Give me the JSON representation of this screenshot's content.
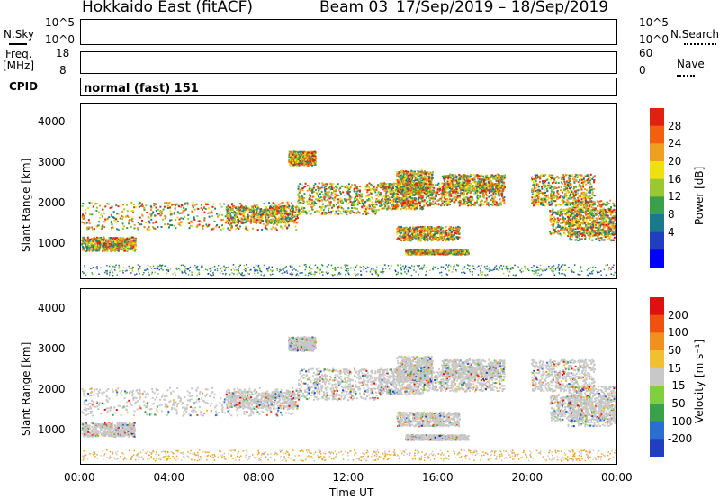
{
  "header": {
    "title": "Hokkaido East (fitACF)",
    "beam": "Beam 03",
    "dates": "17/Sep/2019 – 18/Sep/2019"
  },
  "summary": {
    "nsky_label": "N.Sky",
    "nsky_ticks": [
      "10^5",
      "10^0"
    ],
    "nsearch_label": "N.Search",
    "nsearch_ticks": [
      "10^5",
      "10^0"
    ],
    "freq_label": "Freq.",
    "freq_unit": "[MHz]",
    "freq_ticks": [
      "18",
      "8"
    ],
    "nave_label": "Nave",
    "nave_ticks": [
      "60",
      "0"
    ],
    "cpid_label": "CPID",
    "cpid_value": "normal (fast) 151"
  },
  "chart_data": [
    {
      "type": "heatmap",
      "name": "power",
      "ylabel": "Slant Range [km]",
      "y_ticks": [
        "4000",
        "3000",
        "2000",
        "1000"
      ],
      "ylim": [
        180,
        4500
      ],
      "colorbar_label": "Power [dB]",
      "colorbar_ticks": [
        "28",
        "24",
        "20",
        "16",
        "12",
        "8",
        "4"
      ],
      "colors": [
        "#0000ff",
        "#1f3fbf",
        "#1a7a8a",
        "#3aa04a",
        "#9ac832",
        "#f0e010",
        "#f0a020",
        "#f06010",
        "#e02010"
      ]
    },
    {
      "type": "heatmap",
      "name": "velocity",
      "ylabel": "Slant Range [km]",
      "y_ticks": [
        "4000",
        "3000",
        "2000",
        "1000"
      ],
      "ylim": [
        180,
        4500
      ],
      "colorbar_label": "Velocity [m s⁻¹]",
      "colorbar_ticks": [
        "200",
        "100",
        "50",
        "15",
        "-15",
        "-50",
        "-100",
        "-200"
      ],
      "colors": [
        "#1f3fbf",
        "#2a6fd0",
        "#3aa04a",
        "#7fd040",
        "#c8c8c8",
        "#f0c030",
        "#f09020",
        "#f05010",
        "#e01010"
      ]
    }
  ],
  "xaxis": {
    "label": "Time UT",
    "ticks": [
      "00:00",
      "04:00",
      "08:00",
      "12:00",
      "16:00",
      "20:00",
      "00:00"
    ]
  },
  "colors": {
    "grey_scatter": "#b9b9b9",
    "axis": "#000000"
  }
}
